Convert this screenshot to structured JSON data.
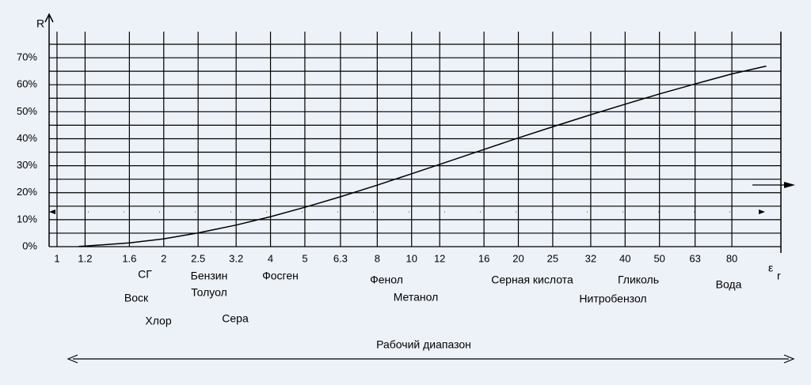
{
  "chart_data": {
    "type": "line",
    "x_label": "ε",
    "x_label_sub": "r",
    "y_label": "R",
    "x": [
      1.15,
      1.2,
      1.6,
      2,
      2.5,
      3.2,
      4,
      5,
      6.3,
      8,
      10,
      12,
      16,
      20,
      25,
      32,
      40,
      50,
      63,
      80,
      100
    ],
    "series": [
      {
        "color": "#000000",
        "values": [
          0.1,
          0.2,
          1.4,
          2.9,
          5.1,
          8.0,
          11.1,
          14.6,
          18.5,
          22.8,
          27.0,
          30.5,
          36.0,
          40.3,
          44.4,
          48.9,
          52.8,
          56.6,
          60.3,
          64.0,
          66.9
        ]
      }
    ],
    "log_x": true,
    "xlim": [
      0.95,
      110
    ],
    "xticks": [
      1,
      1.2,
      1.6,
      2,
      2.5,
      3.2,
      4,
      5,
      6.3,
      8,
      10,
      12,
      16,
      20,
      25,
      32,
      40,
      50,
      63,
      80
    ],
    "ylim": [
      0,
      75
    ],
    "yticks": [
      {
        "value": 0,
        "label": "0%"
      },
      {
        "value": 10,
        "label": "10%"
      },
      {
        "value": 20,
        "label": "20%"
      },
      {
        "value": 30,
        "label": "30%"
      },
      {
        "value": 40,
        "label": "40%"
      },
      {
        "value": 50,
        "label": "50%"
      },
      {
        "value": 60,
        "label": "60%"
      },
      {
        "value": 70,
        "label": "70%"
      }
    ],
    "y_minor_ticks": [
      5,
      15,
      25,
      35,
      45,
      55,
      65,
      75
    ],
    "grid": true,
    "annotations": [
      "СГ",
      "Воск",
      "Хлор",
      "Бензин",
      "Толуол",
      "Сера",
      "Фосген",
      "Фенол",
      "Метанол",
      "Серная кислота",
      "Нитробензол",
      "Гликоль",
      "Вода"
    ],
    "range_label": "Рабочий диапазон"
  }
}
